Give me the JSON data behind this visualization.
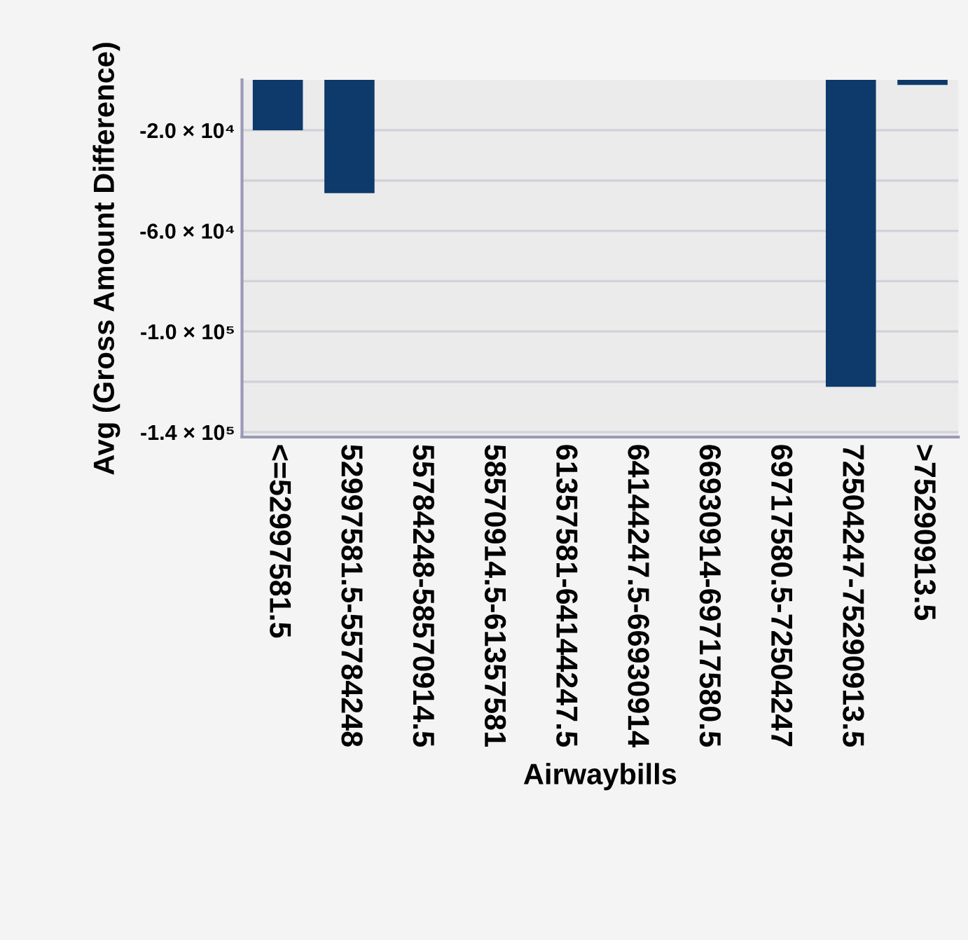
{
  "chart_data": {
    "type": "bar",
    "xlabel": "Airwaybills",
    "ylabel": "Avg (Gross Amount Difference)",
    "categories": [
      "<=52997581.5",
      "52997581.5-55784248",
      "55784248-58570914.5",
      "58570914.5-61357581",
      "61357581-64144247.5",
      "64144247.5-66930914",
      "66930914-69717580.5",
      "69717580.5-72504247",
      "72504247-75290913.5",
      ">75290913.5"
    ],
    "values": [
      -20000,
      -45000,
      null,
      null,
      null,
      null,
      null,
      null,
      -122000,
      -2000
    ],
    "color": "#0d3a6b",
    "ylim": [
      -142000,
      0
    ],
    "yticks": [
      {
        "value": -20000,
        "label": "-2.0 × 10⁴"
      },
      {
        "value": -40000,
        "label": null
      },
      {
        "value": -60000,
        "label": "-6.0 × 10⁴"
      },
      {
        "value": -80000,
        "label": null
      },
      {
        "value": -100000,
        "label": "-1.0 × 10⁵"
      },
      {
        "value": -120000,
        "label": null
      },
      {
        "value": -140000,
        "label": "-1.4 × 10⁵"
      }
    ],
    "grid": "y",
    "legend": false
  }
}
